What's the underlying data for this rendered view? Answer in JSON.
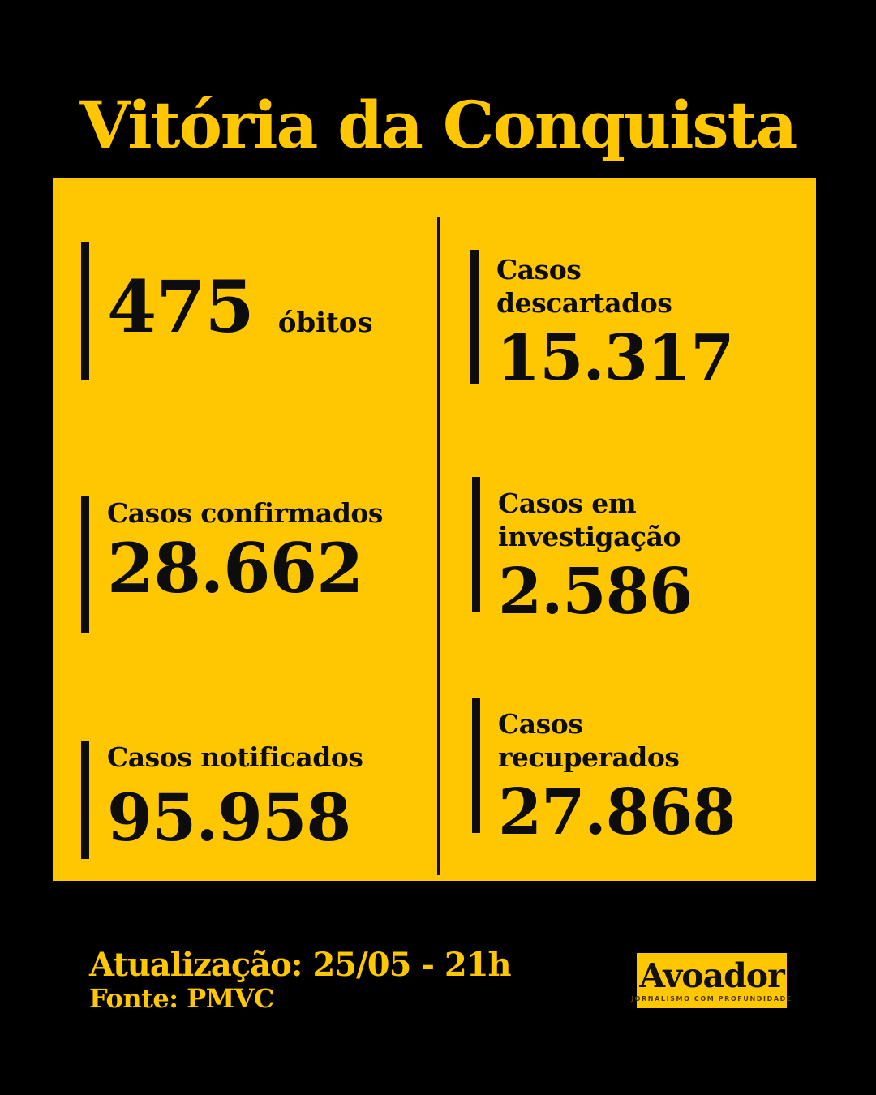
{
  "title": "Vitória da Conquista",
  "colors": {
    "background": "#000000",
    "yellow": "#FFC702",
    "ink": "#0D0D0D"
  },
  "card": {
    "left_column": [
      {
        "value": "475",
        "label": "óbitos"
      },
      {
        "label": "Casos confirmados",
        "value": "28.662"
      },
      {
        "label": "Casos notificados",
        "value": "95.958"
      }
    ],
    "right_column": [
      {
        "label": "Casos descartados",
        "value": "15.317"
      },
      {
        "label": "Casos em investigação",
        "value": "2.586"
      },
      {
        "label": "Casos recuperados",
        "value": "27.868"
      }
    ]
  },
  "footer": {
    "update_text": "Atualização: 25/05 - 21h",
    "source_text": "Fonte: PMVC",
    "logo": {
      "name": "Avoador",
      "tagline": "JORNALISMO COM PROFUNDIDADE"
    }
  }
}
